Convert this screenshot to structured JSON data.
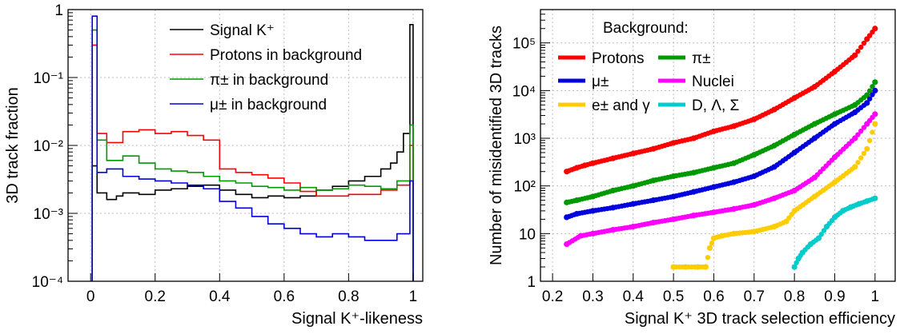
{
  "chart_data": [
    {
      "type": "line",
      "step": true,
      "xlabel": "Signal K⁺-likeness",
      "ylabel": "3D track fraction",
      "xlim": [
        -0.07,
        1.03
      ],
      "ylim": [
        0.0001,
        1
      ],
      "log_y": true,
      "grid": true,
      "legend_position": "top-center",
      "x_ticks": [
        "0",
        "0.2",
        "0.4",
        "0.6",
        "0.8",
        "1"
      ],
      "x_tick_values": [
        0,
        0.2,
        0.4,
        0.6,
        0.8,
        1
      ],
      "y_ticks": [
        "10⁻⁴",
        "10⁻³",
        "10⁻²",
        "10⁻¹",
        "1"
      ],
      "y_tick_values": [
        0.0001,
        0.001,
        0.01,
        0.1,
        1
      ],
      "series": [
        {
          "name": "Signal K⁺",
          "color": "#000000",
          "x": [
            0.005,
            0.02,
            0.05,
            0.08,
            0.1,
            0.15,
            0.2,
            0.25,
            0.3,
            0.35,
            0.4,
            0.45,
            0.5,
            0.55,
            0.6,
            0.65,
            0.7,
            0.75,
            0.8,
            0.85,
            0.9,
            0.93,
            0.95,
            0.97,
            0.99
          ],
          "y": [
            0.005,
            0.002,
            0.0016,
            0.0018,
            0.002,
            0.0019,
            0.0022,
            0.0023,
            0.0025,
            0.0026,
            0.0022,
            0.0019,
            0.0017,
            0.0018,
            0.0017,
            0.0018,
            0.0022,
            0.0025,
            0.003,
            0.0035,
            0.0045,
            0.0055,
            0.008,
            0.015,
            0.6
          ]
        },
        {
          "name": "Protons in background",
          "color": "#ff0000",
          "x": [
            0.005,
            0.02,
            0.05,
            0.1,
            0.15,
            0.2,
            0.25,
            0.3,
            0.35,
            0.4,
            0.45,
            0.5,
            0.55,
            0.6,
            0.65,
            0.7,
            0.75,
            0.8,
            0.85,
            0.9,
            0.95,
            0.99
          ],
          "y": [
            0.3,
            0.015,
            0.011,
            0.016,
            0.017,
            0.015,
            0.016,
            0.014,
            0.012,
            0.0045,
            0.004,
            0.0037,
            0.0033,
            0.0028,
            0.0021,
            0.0018,
            0.0018,
            0.0019,
            0.0019,
            0.0022,
            0.0026,
            0.01
          ]
        },
        {
          "name": "π± in background",
          "color": "#009900",
          "x": [
            0.005,
            0.02,
            0.05,
            0.1,
            0.15,
            0.2,
            0.25,
            0.3,
            0.35,
            0.4,
            0.45,
            0.5,
            0.55,
            0.6,
            0.65,
            0.7,
            0.75,
            0.8,
            0.85,
            0.9,
            0.95,
            0.99
          ],
          "y": [
            0.5,
            0.012,
            0.006,
            0.007,
            0.0055,
            0.0045,
            0.0042,
            0.004,
            0.0035,
            0.003,
            0.0028,
            0.0025,
            0.0024,
            0.0022,
            0.0024,
            0.0022,
            0.0023,
            0.0026,
            0.0025,
            0.0023,
            0.003,
            0.02
          ]
        },
        {
          "name": "μ± in background",
          "color": "#0000dd",
          "x": [
            0.005,
            0.02,
            0.05,
            0.1,
            0.15,
            0.2,
            0.25,
            0.3,
            0.35,
            0.4,
            0.45,
            0.5,
            0.55,
            0.6,
            0.65,
            0.7,
            0.75,
            0.8,
            0.85,
            0.9,
            0.95,
            0.99
          ],
          "y": [
            0.8,
            0.004,
            0.0045,
            0.0035,
            0.0032,
            0.003,
            0.0028,
            0.0026,
            0.0023,
            0.0015,
            0.0012,
            0.0009,
            0.0007,
            0.0006,
            0.0005,
            0.00045,
            0.0005,
            0.00045,
            0.0004,
            0.0004,
            0.0005,
            0.003
          ]
        }
      ]
    },
    {
      "type": "scatter",
      "xlabel": "Signal K⁺ 3D track selection efficiency",
      "ylabel": "Number of misidentified 3D tracks",
      "xlim": [
        0.17,
        1.05
      ],
      "ylim": [
        1,
        500000
      ],
      "log_y": true,
      "grid": true,
      "legend_title": "Background:",
      "legend_position": "top-left",
      "x_ticks": [
        "0.2",
        "0.3",
        "0.4",
        "0.5",
        "0.6",
        "0.7",
        "0.8",
        "0.9",
        "1"
      ],
      "x_tick_values": [
        0.2,
        0.3,
        0.4,
        0.5,
        0.6,
        0.7,
        0.8,
        0.9,
        1.0
      ],
      "y_ticks": [
        "1",
        "10",
        "10²",
        "10³",
        "10⁴",
        "10⁵"
      ],
      "y_tick_values": [
        1,
        10,
        100,
        1000,
        10000,
        100000
      ],
      "series": [
        {
          "name": "Protons",
          "color": "#ff0000",
          "x": [
            0.235,
            0.26,
            0.28,
            0.3,
            0.35,
            0.4,
            0.45,
            0.5,
            0.55,
            0.6,
            0.65,
            0.7,
            0.75,
            0.8,
            0.85,
            0.9,
            0.95,
            0.98,
            1.0
          ],
          "y": [
            200,
            240,
            270,
            300,
            380,
            480,
            600,
            800,
            1000,
            1400,
            1800,
            2500,
            4000,
            7000,
            12000,
            25000,
            55000,
            120000,
            200000
          ]
        },
        {
          "name": "π±",
          "color": "#009900",
          "x": [
            0.235,
            0.26,
            0.3,
            0.35,
            0.4,
            0.45,
            0.5,
            0.55,
            0.6,
            0.65,
            0.7,
            0.75,
            0.8,
            0.85,
            0.9,
            0.95,
            0.98,
            1.0
          ],
          "y": [
            45,
            50,
            60,
            80,
            100,
            130,
            160,
            190,
            240,
            300,
            450,
            700,
            1200,
            2000,
            3200,
            5000,
            8000,
            15000
          ]
        },
        {
          "name": "μ±",
          "color": "#0000dd",
          "x": [
            0.235,
            0.26,
            0.3,
            0.35,
            0.4,
            0.45,
            0.5,
            0.55,
            0.6,
            0.65,
            0.7,
            0.75,
            0.8,
            0.85,
            0.9,
            0.95,
            0.98,
            1.0
          ],
          "y": [
            22,
            26,
            30,
            35,
            42,
            50,
            60,
            75,
            95,
            120,
            160,
            250,
            500,
            1000,
            2000,
            3500,
            5500,
            10000
          ]
        },
        {
          "name": "Nuclei",
          "color": "#ff00ff",
          "x": [
            0.235,
            0.27,
            0.3,
            0.35,
            0.4,
            0.45,
            0.5,
            0.55,
            0.6,
            0.65,
            0.7,
            0.75,
            0.8,
            0.85,
            0.9,
            0.95,
            0.98,
            1.0
          ],
          "y": [
            6,
            9,
            10,
            12,
            14,
            17,
            20,
            24,
            28,
            33,
            40,
            55,
            80,
            150,
            400,
            1000,
            2000,
            3200
          ]
        },
        {
          "name": "e± and γ",
          "color": "#ffcc00",
          "x": [
            0.5,
            0.53,
            0.56,
            0.58,
            0.59,
            0.6,
            0.62,
            0.65,
            0.7,
            0.75,
            0.78,
            0.8,
            0.85,
            0.9,
            0.95,
            0.98,
            1.0
          ],
          "y": [
            2,
            2,
            2,
            2,
            5,
            8,
            9,
            10,
            11,
            14,
            18,
            30,
            60,
            120,
            250,
            600,
            2000
          ]
        },
        {
          "name": "D, Λ, Σ",
          "color": "#00cccc",
          "x": [
            0.8,
            0.81,
            0.82,
            0.84,
            0.86,
            0.88,
            0.9,
            0.92,
            0.94,
            0.96,
            0.98,
            1.0
          ],
          "y": [
            2,
            3,
            4,
            6,
            8,
            14,
            22,
            30,
            36,
            42,
            48,
            55
          ]
        }
      ]
    }
  ]
}
